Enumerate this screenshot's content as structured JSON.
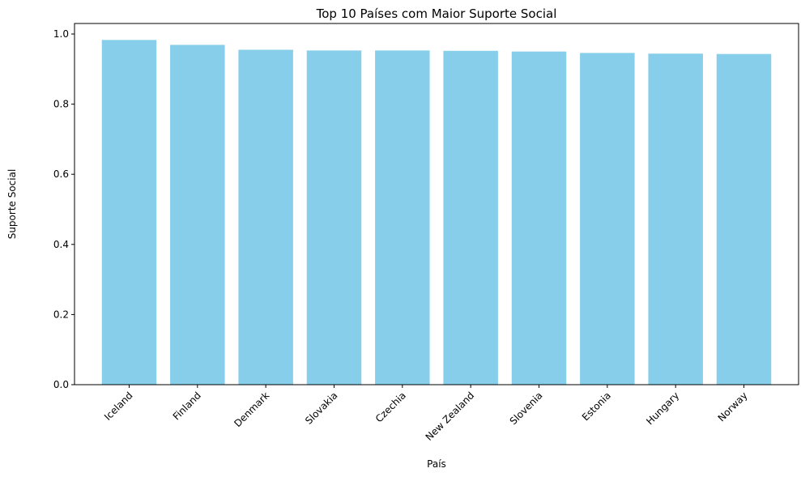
{
  "chart_data": {
    "type": "bar",
    "title": "Top 10 Países com Maior Suporte Social",
    "xlabel": "País",
    "ylabel": "Suporte Social",
    "categories": [
      "Iceland",
      "Finland",
      "Denmark",
      "Slovakia",
      "Czechia",
      "New Zealand",
      "Slovenia",
      "Estonia",
      "Hungary",
      "Norway"
    ],
    "values": [
      0.983,
      0.969,
      0.955,
      0.953,
      0.953,
      0.952,
      0.95,
      0.946,
      0.944,
      0.943
    ],
    "ylim": [
      0,
      1.03
    ],
    "yticks": [
      "0.0",
      "0.2",
      "0.4",
      "0.6",
      "0.8",
      "1.0"
    ],
    "bar_color": "#87CEEB",
    "grid": false,
    "legend": "none"
  }
}
